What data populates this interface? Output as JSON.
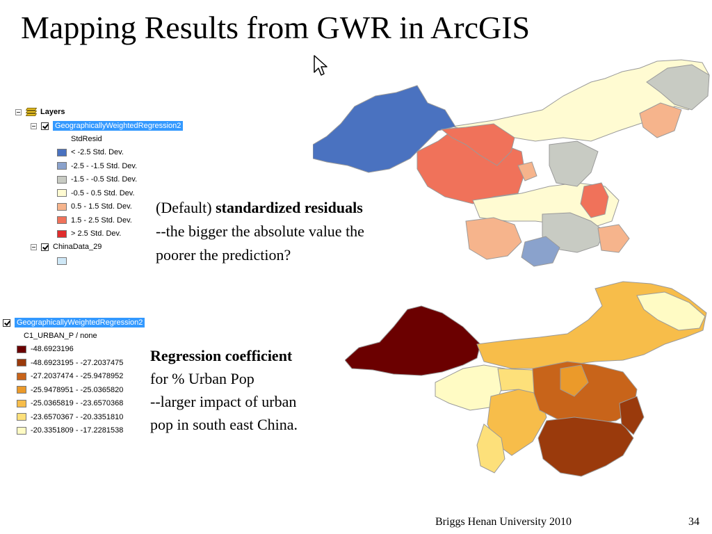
{
  "slide": {
    "title": "Mapping Results from GWR in ArcGIS",
    "footer": "Briggs  Henan University 2010",
    "page_number": "34"
  },
  "toc_top": {
    "root_label": "Layers",
    "layer1_name": "GeographicallyWeightedRegression2",
    "field_name": "StdResid",
    "classes": [
      {
        "label": "< -2.5 Std. Dev.",
        "color": "#4a72c0"
      },
      {
        "label": "-2.5 - -1.5 Std. Dev.",
        "color": "#8aa2cc"
      },
      {
        "label": "-1.5 - -0.5 Std. Dev.",
        "color": "#c8cbc3"
      },
      {
        "label": "-0.5 - 0.5 Std. Dev.",
        "color": "#fffbd2"
      },
      {
        "label": "0.5 - 1.5 Std. Dev.",
        "color": "#f6b48c"
      },
      {
        "label": "1.5 - 2.5 Std. Dev.",
        "color": "#f0725a"
      },
      {
        "label": "> 2.5 Std. Dev.",
        "color": "#e02c2c"
      }
    ],
    "layer2_name": "ChinaData_29",
    "layer2_color": "#cfe8f7"
  },
  "toc_bottom": {
    "layer_name": "GeographicallyWeightedRegression2",
    "field_name": "C1_URBAN_P / none",
    "classes": [
      {
        "label": "-48.6923196",
        "color": "#6b0000"
      },
      {
        "label": "-48.6923195 - -27.2037475",
        "color": "#9a3a0c"
      },
      {
        "label": "-27.2037474 - -25.9478952",
        "color": "#c8641a"
      },
      {
        "label": "-25.9478951 - -25.0365820",
        "color": "#eb9a2a"
      },
      {
        "label": "-25.0365819 - -23.6570368",
        "color": "#f7bd4a"
      },
      {
        "label": "-23.6570367 - -20.3351810",
        "color": "#fde07a"
      },
      {
        "label": "-20.3351809 - -17.2281538",
        "color": "#fffbc4"
      }
    ]
  },
  "caption_top": {
    "prefix": "(Default) ",
    "bold": "standardized residuals",
    "line2": "--the bigger the absolute value the",
    "line3": "poorer the prediction?"
  },
  "caption_bottom": {
    "bold": "Regression coefficient",
    "line2": "for % Urban Pop",
    "line3": "--larger impact of urban",
    "line4": "pop in south east China."
  },
  "colors": {
    "selection": "#3399ff",
    "map_outline": "#9a9a9a"
  }
}
